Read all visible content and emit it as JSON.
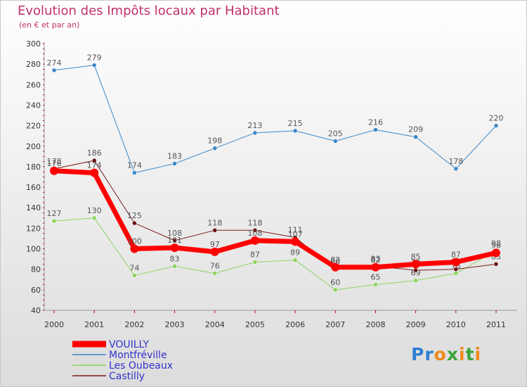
{
  "header": {
    "title": "Evolution des Impôts locaux par Habitant",
    "subtitle": "(en € et par an)"
  },
  "brand": {
    "name": "Proxiti",
    "letters": [
      {
        "ch": "P",
        "color": "#2f7fd4"
      },
      {
        "ch": "r",
        "color": "#2f7fd4"
      },
      {
        "ch": "o",
        "color": "#f08a1c"
      },
      {
        "ch": "x",
        "color": "#3aa43a"
      },
      {
        "ch": "i",
        "color": "#f08a1c"
      },
      {
        "ch": "t",
        "color": "#3aa43a"
      },
      {
        "ch": "i",
        "color": "#f08a1c"
      }
    ]
  },
  "chart_data": {
    "type": "line",
    "title": "Evolution des Impôts locaux par Habitant",
    "subtitle": "(en € et par an)",
    "xlabel": "",
    "ylabel": "",
    "x": [
      "2000",
      "2001",
      "2002",
      "2003",
      "2004",
      "2005",
      "2006",
      "2007",
      "2008",
      "2009",
      "2010",
      "2011"
    ],
    "ylim": [
      40,
      300
    ],
    "yticks": [
      40,
      60,
      80,
      100,
      120,
      140,
      160,
      180,
      200,
      220,
      240,
      260,
      280,
      300
    ],
    "grid": false,
    "legend": "bottom-left",
    "series": [
      {
        "name": "Montfréville",
        "color": "#3c87c8",
        "width": 1,
        "marker": "#3c87c8",
        "values": [
          274,
          279,
          174,
          183,
          198,
          213,
          215,
          205,
          216,
          209,
          178,
          220
        ]
      },
      {
        "name": "Les Oubeaux",
        "color": "#8ed460",
        "width": 1,
        "marker": "#8ed460",
        "values": [
          127,
          130,
          74,
          83,
          76,
          87,
          89,
          60,
          65,
          69,
          76,
          98
        ]
      },
      {
        "name": "Castilly",
        "color": "#7a1a1a",
        "width": 1,
        "marker": "#6a1010",
        "values": [
          178,
          186,
          125,
          108,
          118,
          118,
          111,
          80,
          83,
          79,
          80,
          85
        ]
      },
      {
        "name": "VOUILLY",
        "color": "#ff0000",
        "width": 7,
        "marker": "#ff0000",
        "values": [
          176,
          174,
          100,
          101,
          97,
          108,
          107,
          82,
          82,
          85,
          87,
          96
        ]
      }
    ],
    "legend_order": [
      "VOUILLY",
      "Montfréville",
      "Les Oubeaux",
      "Castilly"
    ]
  }
}
